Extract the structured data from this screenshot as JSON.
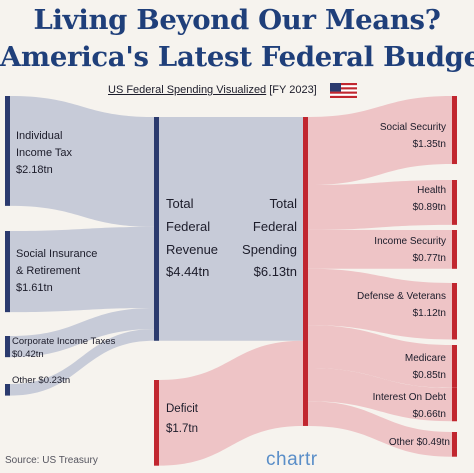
{
  "title_line1": "Living Beyond Our Means?",
  "title_line2": "America's Latest Federal Budget",
  "subtitle_main": "US Federal Spending Visualized",
  "subtitle_period": " [FY 2023]",
  "flag_icon": "us-flag-icon",
  "colors": {
    "title": "#1f3f7a",
    "revenue_node": "#2b3a6e",
    "revenue_flow": "#c7cbd8",
    "spending_node": "#c1262f",
    "spending_flow": "#eec4c6"
  },
  "chart_data": {
    "type": "sankey",
    "units": "tn",
    "revenue_sources": [
      {
        "label_lines": [
          "Individual",
          "Income Tax"
        ],
        "value_label": "$2.18tn",
        "value": 2.18
      },
      {
        "label_lines": [
          "Social Insurance",
          "& Retirement"
        ],
        "value_label": "$1.61tn",
        "value": 1.61
      },
      {
        "label_lines": [
          "Corporate Income Taxes"
        ],
        "value_label": "$0.42tn",
        "value": 0.42
      },
      {
        "label_lines": [
          "Other"
        ],
        "value_label": "$0.23tn",
        "value": 0.23
      }
    ],
    "total_revenue": {
      "label_lines": [
        "Total",
        "Federal",
        "Revenue"
      ],
      "value_label": "$4.44tn",
      "value": 4.44
    },
    "deficit": {
      "label_lines": [
        "Deficit"
      ],
      "value_label": "$1.7tn",
      "value": 1.7
    },
    "total_spending": {
      "label_lines": [
        "Total",
        "Federal",
        "Spending"
      ],
      "value_label": "$6.13tn",
      "value": 6.13
    },
    "spending_categories": [
      {
        "label": "Social Security",
        "value_label": "$1.35tn",
        "value": 1.35
      },
      {
        "label": "Health",
        "value_label": "$0.89tn",
        "value": 0.89
      },
      {
        "label": "Income Security",
        "value_label": "$0.77tn",
        "value": 0.77
      },
      {
        "label": "Defense & Veterans",
        "value_label": "$1.12tn",
        "value": 1.12
      },
      {
        "label": "Medicare",
        "value_label": "$0.85tn",
        "value": 0.85
      },
      {
        "label": "Interest On Debt",
        "value_label": "$0.66tn",
        "value": 0.66
      },
      {
        "label": "Other",
        "value_label": "$0.49tn",
        "value": 0.49
      }
    ]
  },
  "source": "Source: US Treasury",
  "brand": "chartr"
}
